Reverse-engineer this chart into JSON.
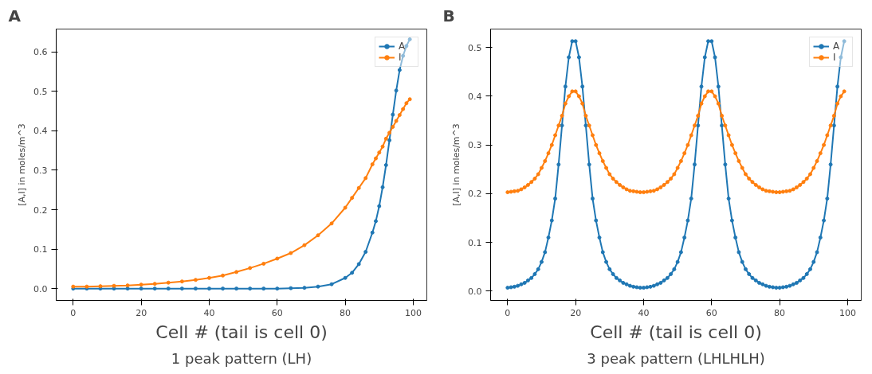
{
  "chart_data": [
    {
      "type": "line",
      "title": "A",
      "xlabel": "Cell # (tail is cell 0)",
      "ylabel": "[A,I] in moles/m^3",
      "annotations": [
        "1 peak pattern (LH)"
      ],
      "x": [
        0,
        4,
        8,
        12,
        16,
        20,
        24,
        28,
        32,
        36,
        40,
        44,
        48,
        52,
        56,
        60,
        64,
        68,
        72,
        76,
        80,
        82,
        84,
        86,
        88,
        89,
        90,
        91,
        92,
        93,
        94,
        95,
        96,
        97,
        98,
        99
      ],
      "series": [
        {
          "name": "A",
          "color": "#1f77b4",
          "values": [
            0,
            0,
            0,
            0,
            0,
            0,
            0,
            0,
            0,
            0,
            0,
            0,
            0,
            0,
            0,
            0,
            0.001,
            0.002,
            0.005,
            0.011,
            0.027,
            0.04,
            0.062,
            0.093,
            0.142,
            0.171,
            0.209,
            0.257,
            0.313,
            0.376,
            0.441,
            0.502,
            0.554,
            0.59,
            0.615,
            0.632
          ]
        },
        {
          "name": "I",
          "color": "#ff7f0e",
          "values": [
            0.005,
            0.005,
            0.006,
            0.007,
            0.008,
            0.01,
            0.012,
            0.015,
            0.018,
            0.022,
            0.027,
            0.033,
            0.042,
            0.052,
            0.063,
            0.076,
            0.09,
            0.11,
            0.135,
            0.165,
            0.205,
            0.23,
            0.255,
            0.28,
            0.315,
            0.33,
            0.345,
            0.36,
            0.38,
            0.395,
            0.41,
            0.425,
            0.44,
            0.455,
            0.47,
            0.48
          ]
        }
      ],
      "xlim": [
        -5,
        104
      ],
      "ylim": [
        -0.03,
        0.658
      ],
      "xticks": [
        0,
        20,
        40,
        60,
        80,
        100
      ],
      "yticks": [
        {
          "value": 0,
          "label": "0.0"
        },
        0.1,
        0.2,
        0.3,
        0.4,
        0.5,
        0.6
      ],
      "grid": false,
      "legend": "top right",
      "marker": "circle",
      "line_style": "solid"
    },
    {
      "type": "line",
      "title": "B",
      "xlabel": "Cell # (tail is cell 0)",
      "ylabel": "[A,I] in moles/m^3",
      "annotations": [
        "3 peak pattern (LHLHLH)"
      ],
      "x": [
        0,
        1,
        2,
        3,
        4,
        5,
        6,
        7,
        8,
        9,
        10,
        11,
        12,
        13,
        14,
        15,
        16,
        17,
        18,
        19,
        20,
        21,
        22,
        23,
        24,
        25,
        26,
        27,
        28,
        29,
        30,
        31,
        32,
        33,
        34,
        35,
        36,
        37,
        38,
        39,
        40,
        41,
        42,
        43,
        44,
        45,
        46,
        47,
        48,
        49,
        50,
        51,
        52,
        53,
        54,
        55,
        56,
        57,
        58,
        59,
        60,
        61,
        62,
        63,
        64,
        65,
        66,
        67,
        68,
        69,
        70,
        71,
        72,
        73,
        74,
        75,
        76,
        77,
        78,
        79,
        80,
        81,
        82,
        83,
        84,
        85,
        86,
        87,
        88,
        89,
        90,
        91,
        92,
        93,
        94,
        95,
        96,
        97,
        98,
        99
      ],
      "series": [
        {
          "name": "A",
          "color": "#1f77b4",
          "values": [
            0.007,
            0.008,
            0.009,
            0.011,
            0.014,
            0.017,
            0.022,
            0.027,
            0.035,
            0.045,
            0.06,
            0.08,
            0.11,
            0.145,
            0.19,
            0.26,
            0.34,
            0.42,
            0.48,
            0.513,
            0.513,
            0.48,
            0.42,
            0.34,
            0.26,
            0.19,
            0.145,
            0.11,
            0.08,
            0.06,
            0.045,
            0.035,
            0.027,
            0.022,
            0.017,
            0.014,
            0.011,
            0.009,
            0.008,
            0.007,
            0.007,
            0.008,
            0.009,
            0.011,
            0.014,
            0.017,
            0.022,
            0.027,
            0.035,
            0.045,
            0.06,
            0.08,
            0.11,
            0.145,
            0.19,
            0.26,
            0.34,
            0.42,
            0.48,
            0.513,
            0.513,
            0.48,
            0.42,
            0.34,
            0.26,
            0.19,
            0.145,
            0.11,
            0.08,
            0.06,
            0.045,
            0.035,
            0.027,
            0.022,
            0.017,
            0.014,
            0.011,
            0.009,
            0.008,
            0.007,
            0.007,
            0.008,
            0.009,
            0.011,
            0.014,
            0.017,
            0.022,
            0.027,
            0.035,
            0.045,
            0.06,
            0.08,
            0.11,
            0.145,
            0.19,
            0.26,
            0.34,
            0.42,
            0.48,
            0.513
          ]
        },
        {
          "name": "I",
          "color": "#ff7f0e",
          "values": [
            0.203,
            0.204,
            0.205,
            0.206,
            0.209,
            0.213,
            0.218,
            0.224,
            0.231,
            0.24,
            0.253,
            0.267,
            0.283,
            0.3,
            0.32,
            0.34,
            0.36,
            0.385,
            0.4,
            0.41,
            0.41,
            0.4,
            0.385,
            0.36,
            0.34,
            0.32,
            0.3,
            0.283,
            0.267,
            0.253,
            0.24,
            0.231,
            0.224,
            0.218,
            0.213,
            0.209,
            0.206,
            0.205,
            0.204,
            0.203,
            0.203,
            0.204,
            0.205,
            0.206,
            0.209,
            0.213,
            0.218,
            0.224,
            0.231,
            0.24,
            0.253,
            0.267,
            0.283,
            0.3,
            0.32,
            0.34,
            0.36,
            0.385,
            0.4,
            0.41,
            0.41,
            0.4,
            0.385,
            0.36,
            0.34,
            0.32,
            0.3,
            0.283,
            0.267,
            0.253,
            0.24,
            0.231,
            0.224,
            0.218,
            0.213,
            0.209,
            0.206,
            0.205,
            0.204,
            0.203,
            0.203,
            0.204,
            0.205,
            0.206,
            0.209,
            0.213,
            0.218,
            0.224,
            0.231,
            0.24,
            0.253,
            0.267,
            0.283,
            0.3,
            0.32,
            0.34,
            0.36,
            0.385,
            0.4,
            0.41
          ]
        }
      ],
      "xlim": [
        -5,
        104
      ],
      "ylim": [
        -0.019,
        0.538
      ],
      "xticks": [
        0,
        20,
        40,
        60,
        80,
        100
      ],
      "yticks": [
        {
          "value": 0,
          "label": "0.0"
        },
        0.1,
        0.2,
        0.3,
        0.4,
        0.5
      ],
      "grid": false,
      "legend": "top right",
      "marker": "circle",
      "line_style": "solid"
    }
  ]
}
